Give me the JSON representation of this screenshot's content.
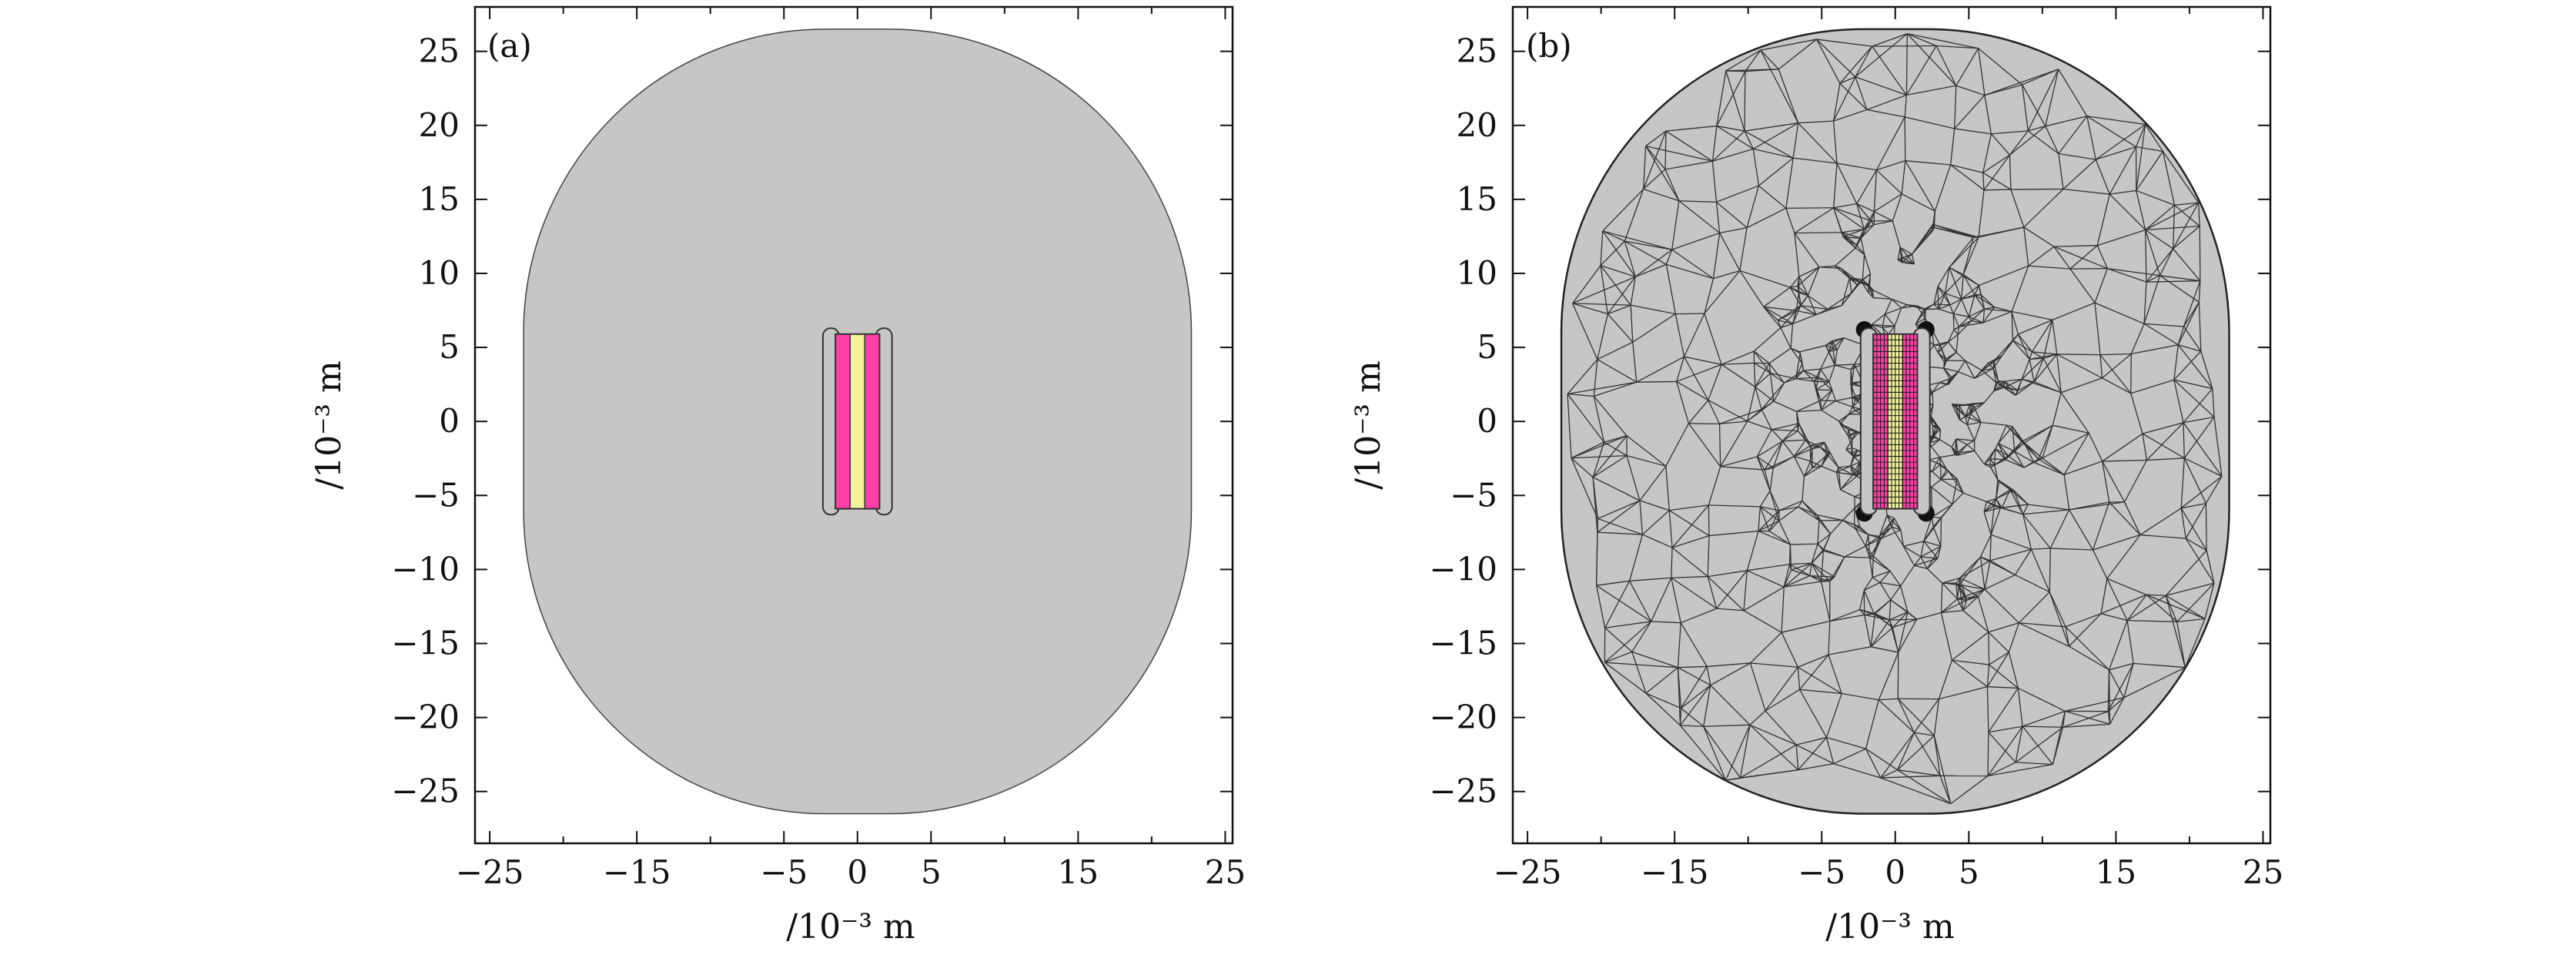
{
  "panels": [
    {
      "id": "a",
      "label": "(a)",
      "xlabel": "/10⁻³ m",
      "ylabel": "/10⁻³ m",
      "xlim": [
        -26,
        25.5
      ],
      "ylim": [
        -28.5,
        28
      ],
      "x_ticks": [
        -25,
        -15,
        -5,
        0,
        5,
        15,
        25
      ],
      "y_ticks": [
        25,
        20,
        15,
        10,
        5,
        0,
        -5,
        -10,
        -15,
        -20,
        -25
      ],
      "show_mesh": false
    },
    {
      "id": "b",
      "label": "(b)",
      "xlabel": "/10⁻³ m",
      "ylabel": "/10⁻³ m",
      "xlim": [
        -26,
        25.5
      ],
      "ylim": [
        -28.5,
        28
      ],
      "x_ticks": [
        -25,
        -15,
        -5,
        0,
        5,
        15,
        25
      ],
      "y_ticks": [
        25,
        20,
        15,
        10,
        5,
        0,
        -5,
        -10,
        -15,
        -20,
        -25
      ],
      "show_mesh": true
    }
  ],
  "geometry": {
    "domain_half_width": 22.7,
    "domain_half_height": 26.5,
    "corner_radius": 20.5,
    "strip_x_edges": [
      -1.5,
      -0.5,
      0.5,
      1.5
    ],
    "strip_half_height": 5.9,
    "end_rod_half_height": 6.3,
    "end_rod_width": 1.1,
    "end_rod_centers_x": [
      -1.8,
      1.8
    ]
  },
  "colors": {
    "background": "#c6c6c6",
    "magenta": "#ff3fa8",
    "yellow": "#f4f29b",
    "outline": "#333333",
    "mesh": "#333333"
  }
}
